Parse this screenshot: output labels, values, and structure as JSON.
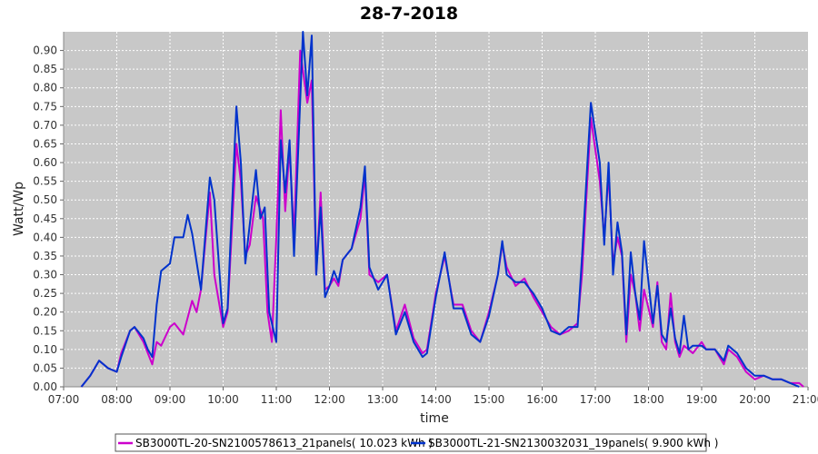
{
  "chart_data": {
    "type": "line",
    "title": "28-7-2018",
    "xlabel": "time",
    "ylabel": "Watt/Wp",
    "xlim": [
      "07:00",
      "21:00"
    ],
    "ylim": [
      0,
      0.95
    ],
    "grid": true,
    "legend_position": "bottom",
    "x_ticks": [
      "07:00",
      "08:00",
      "09:00",
      "10:00",
      "11:00",
      "12:00",
      "13:00",
      "14:00",
      "15:00",
      "16:00",
      "17:00",
      "18:00",
      "19:00",
      "20:00",
      "21:00"
    ],
    "y_ticks": [
      "0.00",
      "0.05",
      "0.10",
      "0.15",
      "0.20",
      "0.25",
      "0.30",
      "0.35",
      "0.40",
      "0.45",
      "0.50",
      "0.55",
      "0.60",
      "0.65",
      "0.70",
      "0.75",
      "0.80",
      "0.85",
      "0.90"
    ],
    "colors": {
      "plot_background": "#c8c8c8",
      "series_1": "#cc00cc",
      "series_2": "#0033cc"
    },
    "series": [
      {
        "name": "SB3000TL-20-SN2100578613_21panels( 10.023 kWh )",
        "color": "#cc00cc",
        "points": [
          [
            "07:20",
            0.0
          ],
          [
            "07:30",
            0.03
          ],
          [
            "07:40",
            0.07
          ],
          [
            "07:50",
            0.05
          ],
          [
            "08:00",
            0.04
          ],
          [
            "08:05",
            0.09
          ],
          [
            "08:15",
            0.15
          ],
          [
            "08:20",
            0.16
          ],
          [
            "08:30",
            0.12
          ],
          [
            "08:40",
            0.06
          ],
          [
            "08:45",
            0.12
          ],
          [
            "08:50",
            0.11
          ],
          [
            "09:00",
            0.16
          ],
          [
            "09:05",
            0.17
          ],
          [
            "09:15",
            0.14
          ],
          [
            "09:25",
            0.23
          ],
          [
            "09:30",
            0.2
          ],
          [
            "09:35",
            0.26
          ],
          [
            "09:45",
            0.52
          ],
          [
            "09:50",
            0.3
          ],
          [
            "10:00",
            0.16
          ],
          [
            "10:05",
            0.2
          ],
          [
            "10:15",
            0.65
          ],
          [
            "10:20",
            0.55
          ],
          [
            "10:25",
            0.35
          ],
          [
            "10:30",
            0.38
          ],
          [
            "10:37",
            0.51
          ],
          [
            "10:45",
            0.45
          ],
          [
            "10:50",
            0.2
          ],
          [
            "10:55",
            0.12
          ],
          [
            "11:00",
            0.4
          ],
          [
            "11:05",
            0.74
          ],
          [
            "11:10",
            0.47
          ],
          [
            "11:15",
            0.64
          ],
          [
            "11:20",
            0.4
          ],
          [
            "11:27",
            0.9
          ],
          [
            "11:35",
            0.76
          ],
          [
            "11:40",
            0.82
          ],
          [
            "11:45",
            0.3
          ],
          [
            "11:50",
            0.52
          ],
          [
            "11:55",
            0.26
          ],
          [
            "12:00",
            0.27
          ],
          [
            "12:05",
            0.29
          ],
          [
            "12:10",
            0.27
          ],
          [
            "12:15",
            0.34
          ],
          [
            "12:25",
            0.37
          ],
          [
            "12:35",
            0.45
          ],
          [
            "12:40",
            0.57
          ],
          [
            "12:45",
            0.3
          ],
          [
            "12:55",
            0.28
          ],
          [
            "13:05",
            0.3
          ],
          [
            "13:15",
            0.15
          ],
          [
            "13:25",
            0.22
          ],
          [
            "13:35",
            0.13
          ],
          [
            "13:45",
            0.09
          ],
          [
            "13:50",
            0.1
          ],
          [
            "14:00",
            0.25
          ],
          [
            "14:10",
            0.35
          ],
          [
            "14:20",
            0.22
          ],
          [
            "14:30",
            0.22
          ],
          [
            "14:40",
            0.15
          ],
          [
            "14:50",
            0.12
          ],
          [
            "15:00",
            0.2
          ],
          [
            "15:10",
            0.3
          ],
          [
            "15:15",
            0.38
          ],
          [
            "15:20",
            0.32
          ],
          [
            "15:30",
            0.27
          ],
          [
            "15:40",
            0.29
          ],
          [
            "15:50",
            0.24
          ],
          [
            "16:00",
            0.2
          ],
          [
            "16:10",
            0.16
          ],
          [
            "16:20",
            0.14
          ],
          [
            "16:30",
            0.15
          ],
          [
            "16:40",
            0.17
          ],
          [
            "16:45",
            0.3
          ],
          [
            "16:55",
            0.72
          ],
          [
            "17:05",
            0.55
          ],
          [
            "17:10",
            0.4
          ],
          [
            "17:15",
            0.57
          ],
          [
            "17:20",
            0.33
          ],
          [
            "17:25",
            0.4
          ],
          [
            "17:30",
            0.35
          ],
          [
            "17:35",
            0.12
          ],
          [
            "17:40",
            0.3
          ],
          [
            "17:45",
            0.25
          ],
          [
            "17:50",
            0.15
          ],
          [
            "17:55",
            0.26
          ],
          [
            "18:05",
            0.16
          ],
          [
            "18:10",
            0.28
          ],
          [
            "18:15",
            0.12
          ],
          [
            "18:20",
            0.1
          ],
          [
            "18:25",
            0.25
          ],
          [
            "18:30",
            0.12
          ],
          [
            "18:35",
            0.08
          ],
          [
            "18:40",
            0.11
          ],
          [
            "18:45",
            0.1
          ],
          [
            "18:50",
            0.09
          ],
          [
            "19:00",
            0.12
          ],
          [
            "19:05",
            0.1
          ],
          [
            "19:15",
            0.1
          ],
          [
            "19:25",
            0.06
          ],
          [
            "19:30",
            0.1
          ],
          [
            "19:40",
            0.08
          ],
          [
            "19:50",
            0.04
          ],
          [
            "20:00",
            0.02
          ],
          [
            "20:10",
            0.03
          ],
          [
            "20:20",
            0.02
          ],
          [
            "20:30",
            0.02
          ],
          [
            "20:40",
            0.01
          ],
          [
            "20:50",
            0.01
          ],
          [
            "20:55",
            0.0
          ]
        ]
      },
      {
        "name": "SB3000TL-21-SN2130032031_19panels( 9.900 kWh )",
        "color": "#0033cc",
        "points": [
          [
            "07:20",
            0.0
          ],
          [
            "07:30",
            0.03
          ],
          [
            "07:40",
            0.07
          ],
          [
            "07:50",
            0.05
          ],
          [
            "08:00",
            0.04
          ],
          [
            "08:05",
            0.08
          ],
          [
            "08:15",
            0.15
          ],
          [
            "08:20",
            0.16
          ],
          [
            "08:30",
            0.13
          ],
          [
            "08:35",
            0.1
          ],
          [
            "08:40",
            0.08
          ],
          [
            "08:45",
            0.22
          ],
          [
            "08:50",
            0.31
          ],
          [
            "09:00",
            0.33
          ],
          [
            "09:05",
            0.4
          ],
          [
            "09:15",
            0.4
          ],
          [
            "09:20",
            0.46
          ],
          [
            "09:25",
            0.41
          ],
          [
            "09:35",
            0.26
          ],
          [
            "09:45",
            0.56
          ],
          [
            "09:50",
            0.5
          ],
          [
            "10:00",
            0.17
          ],
          [
            "10:05",
            0.21
          ],
          [
            "10:15",
            0.75
          ],
          [
            "10:20",
            0.6
          ],
          [
            "10:25",
            0.33
          ],
          [
            "10:37",
            0.58
          ],
          [
            "10:42",
            0.45
          ],
          [
            "10:47",
            0.48
          ],
          [
            "10:52",
            0.2
          ],
          [
            "11:00",
            0.12
          ],
          [
            "11:05",
            0.66
          ],
          [
            "11:10",
            0.52
          ],
          [
            "11:15",
            0.66
          ],
          [
            "11:20",
            0.35
          ],
          [
            "11:30",
            0.96
          ],
          [
            "11:35",
            0.78
          ],
          [
            "11:40",
            0.94
          ],
          [
            "11:45",
            0.3
          ],
          [
            "11:50",
            0.48
          ],
          [
            "11:55",
            0.24
          ],
          [
            "12:00",
            0.27
          ],
          [
            "12:05",
            0.31
          ],
          [
            "12:10",
            0.28
          ],
          [
            "12:15",
            0.34
          ],
          [
            "12:25",
            0.37
          ],
          [
            "12:35",
            0.48
          ],
          [
            "12:40",
            0.59
          ],
          [
            "12:45",
            0.32
          ],
          [
            "12:55",
            0.26
          ],
          [
            "13:05",
            0.3
          ],
          [
            "13:15",
            0.14
          ],
          [
            "13:25",
            0.2
          ],
          [
            "13:35",
            0.12
          ],
          [
            "13:45",
            0.08
          ],
          [
            "13:50",
            0.09
          ],
          [
            "14:00",
            0.24
          ],
          [
            "14:10",
            0.36
          ],
          [
            "14:20",
            0.21
          ],
          [
            "14:30",
            0.21
          ],
          [
            "14:40",
            0.14
          ],
          [
            "14:50",
            0.12
          ],
          [
            "15:00",
            0.19
          ],
          [
            "15:10",
            0.3
          ],
          [
            "15:15",
            0.39
          ],
          [
            "15:20",
            0.3
          ],
          [
            "15:30",
            0.28
          ],
          [
            "15:40",
            0.28
          ],
          [
            "15:50",
            0.25
          ],
          [
            "16:00",
            0.21
          ],
          [
            "16:10",
            0.15
          ],
          [
            "16:20",
            0.14
          ],
          [
            "16:30",
            0.16
          ],
          [
            "16:40",
            0.16
          ],
          [
            "16:45",
            0.35
          ],
          [
            "16:55",
            0.76
          ],
          [
            "17:05",
            0.6
          ],
          [
            "17:10",
            0.38
          ],
          [
            "17:15",
            0.6
          ],
          [
            "17:20",
            0.3
          ],
          [
            "17:25",
            0.44
          ],
          [
            "17:30",
            0.36
          ],
          [
            "17:35",
            0.14
          ],
          [
            "17:40",
            0.36
          ],
          [
            "17:45",
            0.25
          ],
          [
            "17:50",
            0.18
          ],
          [
            "17:55",
            0.39
          ],
          [
            "18:05",
            0.17
          ],
          [
            "18:10",
            0.27
          ],
          [
            "18:15",
            0.14
          ],
          [
            "18:20",
            0.12
          ],
          [
            "18:25",
            0.21
          ],
          [
            "18:30",
            0.13
          ],
          [
            "18:35",
            0.09
          ],
          [
            "18:40",
            0.19
          ],
          [
            "18:45",
            0.1
          ],
          [
            "18:50",
            0.11
          ],
          [
            "19:00",
            0.11
          ],
          [
            "19:05",
            0.1
          ],
          [
            "19:15",
            0.1
          ],
          [
            "19:25",
            0.07
          ],
          [
            "19:30",
            0.11
          ],
          [
            "19:40",
            0.09
          ],
          [
            "19:50",
            0.05
          ],
          [
            "20:00",
            0.03
          ],
          [
            "20:10",
            0.03
          ],
          [
            "20:20",
            0.02
          ],
          [
            "20:30",
            0.02
          ],
          [
            "20:40",
            0.01
          ],
          [
            "20:50",
            0.0
          ]
        ]
      }
    ]
  }
}
